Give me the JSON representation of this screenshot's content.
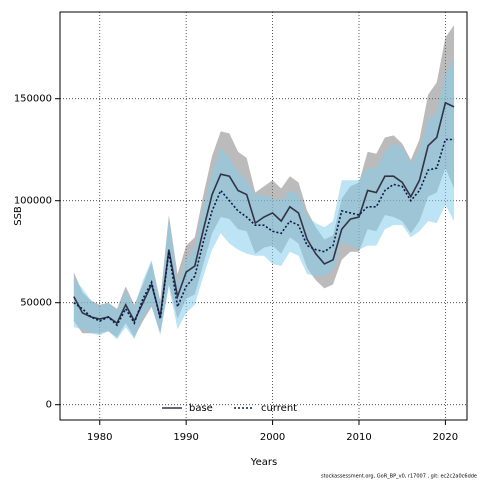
{
  "chart_data": {
    "type": "line",
    "y_label": "SSB",
    "x_label": "Years",
    "x": [
      1977,
      1978,
      1979,
      1980,
      1981,
      1982,
      1983,
      1984,
      1985,
      1986,
      1987,
      1988,
      1989,
      1990,
      1991,
      1992,
      1993,
      1994,
      1995,
      1996,
      1997,
      1998,
      1999,
      2000,
      2001,
      2002,
      2003,
      2004,
      2005,
      2006,
      2007,
      2008,
      2009,
      2010,
      2011,
      2012,
      2013,
      2014,
      2015,
      2016,
      2017,
      2018,
      2019,
      2020,
      2021
    ],
    "xlim": [
      1975.4,
      2022.5
    ],
    "xticks": [
      1980,
      1990,
      2000,
      2010,
      2020
    ],
    "ylim": [
      -7500,
      192500
    ],
    "yticks": [
      0,
      50000,
      100000,
      150000
    ],
    "grid": true,
    "legend": "bottom",
    "series": [
      {
        "name": "base",
        "color": "#333344",
        "dash": "solid",
        "band_color": "rgba(120,120,120,0.5)",
        "values": [
          53000,
          45000,
          43000,
          42000,
          43000,
          40000,
          49000,
          41000,
          50000,
          59000,
          43000,
          76000,
          53000,
          65000,
          68000,
          86000,
          103000,
          113000,
          112000,
          105000,
          103000,
          89000,
          92000,
          94000,
          90000,
          97000,
          94000,
          81000,
          74000,
          69000,
          71000,
          86000,
          91000,
          92000,
          105000,
          104000,
          112000,
          112000,
          109000,
          102000,
          110000,
          127000,
          131000,
          148000,
          146000
        ],
        "low": [
          41000,
          35000,
          35000,
          35000,
          36000,
          33000,
          40000,
          33000,
          41000,
          48000,
          35000,
          59000,
          42000,
          52000,
          54000,
          69000,
          84000,
          92000,
          91000,
          86000,
          85000,
          74000,
          77000,
          78000,
          74000,
          82000,
          79000,
          67000,
          61000,
          57000,
          59000,
          71000,
          75000,
          75000,
          86000,
          85000,
          93000,
          92000,
          90000,
          84000,
          90000,
          102000,
          104000,
          116000,
          106000
        ],
        "high": [
          65000,
          55000,
          51000,
          49000,
          50000,
          47000,
          58000,
          49000,
          59000,
          70000,
          51000,
          93000,
          64000,
          78000,
          82000,
          103000,
          122000,
          134000,
          133000,
          124000,
          121000,
          104000,
          107000,
          110000,
          106000,
          112000,
          109000,
          95000,
          87000,
          81000,
          83000,
          101000,
          107000,
          109000,
          124000,
          123000,
          131000,
          132000,
          128000,
          120000,
          130000,
          152000,
          158000,
          180000,
          186000
        ]
      },
      {
        "name": "current",
        "color": "#0a1a4a",
        "dash": "dotted",
        "band_color": "rgba(135,206,235,0.55)",
        "values": [
          50000,
          47000,
          43000,
          41000,
          43000,
          39000,
          47000,
          40000,
          52000,
          60000,
          42000,
          75000,
          48000,
          58000,
          63000,
          80000,
          95000,
          105000,
          100000,
          95000,
          92000,
          88000,
          88000,
          85000,
          84000,
          90000,
          88000,
          78000,
          76000,
          75000,
          78000,
          95000,
          94000,
          93000,
          97000,
          97000,
          105000,
          108000,
          107000,
          100000,
          105000,
          115000,
          116000,
          130000,
          130000
        ],
        "low": [
          38000,
          37000,
          35000,
          34000,
          36000,
          32000,
          38000,
          32000,
          43000,
          49000,
          34000,
          58000,
          37000,
          45000,
          49000,
          63000,
          76000,
          84000,
          79000,
          76000,
          74000,
          73000,
          73000,
          69000,
          68000,
          75000,
          73000,
          64000,
          63000,
          63000,
          66000,
          80000,
          78000,
          76000,
          78000,
          78000,
          86000,
          88000,
          88000,
          82000,
          85000,
          90000,
          89000,
          98000,
          90000
        ],
        "high": [
          62000,
          57000,
          51000,
          48000,
          50000,
          46000,
          56000,
          48000,
          61000,
          71000,
          50000,
          92000,
          59000,
          71000,
          77000,
          97000,
          114000,
          126000,
          121000,
          114000,
          110000,
          103000,
          103000,
          101000,
          100000,
          105000,
          103000,
          92000,
          89000,
          87000,
          90000,
          110000,
          110000,
          110000,
          116000,
          116000,
          124000,
          128000,
          126000,
          118000,
          125000,
          140000,
          143000,
          162000,
          170000
        ]
      }
    ]
  },
  "footer": "stockassessment.org, GoR_BP_v0, r17007 , git: ec2c2a0c6dde"
}
